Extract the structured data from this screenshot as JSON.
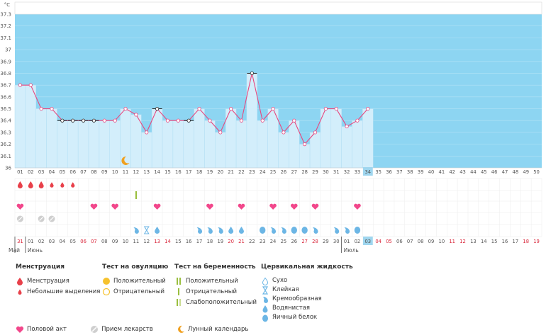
{
  "chart_data": {
    "type": "line",
    "unit": "°C",
    "y_ticks": [
      "36",
      "36.1",
      "36.2",
      "36.3",
      "36.4",
      "36.5",
      "36.6",
      "36.7",
      "36.8",
      "36.9",
      "37",
      "37.1",
      "37.2",
      "37.3"
    ],
    "ylim": [
      36.0,
      37.3
    ],
    "cycle_days": [
      "01",
      "02",
      "03",
      "04",
      "05",
      "06",
      "07",
      "08",
      "09",
      "10",
      "11",
      "12",
      "13",
      "14",
      "15",
      "16",
      "17",
      "18",
      "19",
      "20",
      "21",
      "22",
      "23",
      "24",
      "25",
      "26",
      "27",
      "28",
      "29",
      "30",
      "31",
      "32",
      "33",
      "34",
      "35",
      "36",
      "37",
      "38",
      "39",
      "40",
      "41",
      "42",
      "43",
      "44",
      "45",
      "46",
      "47",
      "48",
      "49",
      "50"
    ],
    "current_day_index": 33,
    "temperatures": [
      36.7,
      36.7,
      36.5,
      36.5,
      36.4,
      36.4,
      36.4,
      36.4,
      36.4,
      36.4,
      36.5,
      36.45,
      36.3,
      36.5,
      36.4,
      36.4,
      36.4,
      36.5,
      36.4,
      36.3,
      36.5,
      36.4,
      36.8,
      36.4,
      36.5,
      36.3,
      36.4,
      36.2,
      36.3,
      36.5,
      36.5,
      36.35,
      36.4,
      36.5
    ],
    "highlighted_points": [
      4,
      5,
      6,
      7,
      13,
      16,
      22
    ],
    "calendar_dates": [
      "31",
      "01",
      "02",
      "03",
      "04",
      "05",
      "06",
      "07",
      "08",
      "09",
      "10",
      "11",
      "12",
      "13",
      "14",
      "15",
      "16",
      "17",
      "18",
      "19",
      "20",
      "21",
      "22",
      "23",
      "24",
      "25",
      "26",
      "27",
      "28",
      "29",
      "30",
      "01",
      "02",
      "03",
      "04",
      "05",
      "06",
      "07",
      "08",
      "09",
      "10",
      "11",
      "12",
      "13",
      "14",
      "15",
      "16",
      "17",
      "18",
      "19"
    ],
    "weekend_dates": [
      0,
      6,
      7,
      13,
      14,
      20,
      21,
      27,
      28,
      34,
      35,
      41,
      42,
      48,
      49
    ],
    "month_labels": [
      {
        "index": 0,
        "label": "Май"
      },
      {
        "index": 1,
        "label": "Июнь"
      },
      {
        "index": 31,
        "label": "Июль"
      }
    ],
    "rows": {
      "menstruation": {
        "heavy": [
          0,
          1,
          2
        ],
        "light": [
          3,
          4,
          5
        ]
      },
      "ovulation_test_positive": [],
      "ovulation_test_negative": [],
      "pregnancy_test_negative": [
        11
      ],
      "intercourse": [
        0,
        7,
        9,
        13,
        18,
        21,
        24,
        26,
        28,
        32
      ],
      "medication": [
        0,
        2,
        3
      ],
      "cervical_fluid": [
        {
          "i": 11,
          "t": "creamy"
        },
        {
          "i": 12,
          "t": "sticky"
        },
        {
          "i": 13,
          "t": "watery"
        },
        {
          "i": 17,
          "t": "creamy"
        },
        {
          "i": 18,
          "t": "creamy"
        },
        {
          "i": 19,
          "t": "creamy"
        },
        {
          "i": 20,
          "t": "watery"
        },
        {
          "i": 21,
          "t": "watery"
        },
        {
          "i": 23,
          "t": "eggwhite"
        },
        {
          "i": 24,
          "t": "creamy"
        },
        {
          "i": 25,
          "t": "creamy"
        },
        {
          "i": 26,
          "t": "eggwhite"
        },
        {
          "i": 27,
          "t": "eggwhite"
        },
        {
          "i": 28,
          "t": "creamy"
        },
        {
          "i": 30,
          "t": "creamy"
        },
        {
          "i": 31,
          "t": "creamy"
        },
        {
          "i": 32,
          "t": "eggwhite"
        }
      ],
      "lunar_calendar": [
        10
      ]
    },
    "colors": {
      "sky": "#8dd5f2",
      "bar": "#d3eefb",
      "bar_border": "#b3dff4",
      "line": "#e8477e",
      "heart": "#f2478b",
      "drop_red": "#e8404a",
      "drop_blue": "#6cb6e5",
      "green": "#9abf3f",
      "moon": "#f0a020",
      "current": "#9fd6ef",
      "weekend": "#d9263a"
    }
  },
  "legend": {
    "menstruation": {
      "title": "Менструация",
      "items": [
        "Менструация",
        "Небольшие выделения"
      ]
    },
    "ovulation": {
      "title": "Тест на овуляцию",
      "items": [
        "Положительный",
        "Отрицательный"
      ]
    },
    "pregnancy": {
      "title": "Тест на беременность",
      "items": [
        "Положительный",
        "Отрицательный",
        "Слабоположительный"
      ]
    },
    "cervical": {
      "title": "Цервикальная жидкость",
      "items": [
        "Сухо",
        "Клейкая",
        "Кремообразная",
        "Водянистая",
        "Яичный белок"
      ]
    },
    "bottom": [
      "Половой акт",
      "Прием лекарств",
      "Лунный календарь"
    ]
  }
}
